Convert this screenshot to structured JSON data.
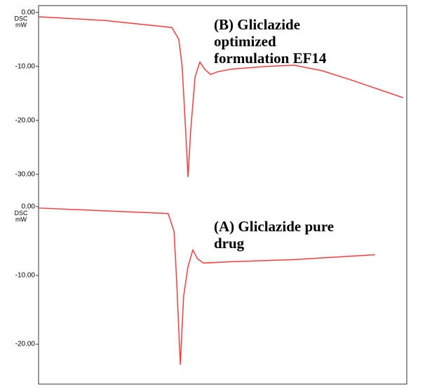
{
  "chart_data": [
    {
      "type": "line",
      "ylabel": [
        "DSC",
        "mW"
      ],
      "annotation": [
        "(B) Gliclazide",
        "optimized",
        "formulation EF14"
      ],
      "xlim": [
        0,
        100
      ],
      "ylim": [
        -32.5,
        1
      ],
      "yticks": [
        {
          "value": 0,
          "label": "0.00"
        },
        {
          "value": -10,
          "label": "-10.00"
        },
        {
          "value": -20,
          "label": "-20.00"
        },
        {
          "value": -30,
          "label": "-30.00"
        }
      ],
      "x": [
        0,
        18,
        36.2,
        38.1,
        39,
        39.8,
        40.6,
        41.3,
        42.5,
        43.8,
        45.1,
        46.7,
        48.6,
        52.4,
        61.9,
        69.5,
        77,
        84.8,
        99
      ],
      "series": [
        {
          "color": "#ff3b3b",
          "values": [
            -0.8,
            -1.5,
            -2.8,
            -5,
            -10,
            -20,
            -30.5,
            -22,
            -12,
            -9.2,
            -10.5,
            -11.5,
            -11,
            -10.5,
            -10,
            -9.8,
            -10.8,
            -12.5,
            -15.8
          ]
        }
      ]
    },
    {
      "type": "line",
      "ylabel": [
        "DSC",
        "mW"
      ],
      "annotation": [
        "(A) Gliclazide pure",
        "drug"
      ],
      "xlim": [
        0,
        100
      ],
      "ylim": [
        -25.8,
        0.8
      ],
      "yticks": [
        {
          "value": 0,
          "label": "0.00"
        },
        {
          "value": -10,
          "label": "-10.00"
        },
        {
          "value": -20,
          "label": "-20.00"
        }
      ],
      "x": [
        0,
        35.2,
        36.8,
        37.5,
        38.5,
        39.4,
        40.6,
        41.9,
        43.2,
        44.8,
        52.4,
        69.5,
        84.8,
        91.4
      ],
      "series": [
        {
          "color": "#ff3b3b",
          "values": [
            -0.2,
            -1,
            -3.6,
            -10.7,
            -23,
            -13,
            -8.7,
            -6.3,
            -7.6,
            -8.2,
            -8,
            -7.7,
            -7.2,
            -7.0
          ]
        }
      ]
    }
  ]
}
